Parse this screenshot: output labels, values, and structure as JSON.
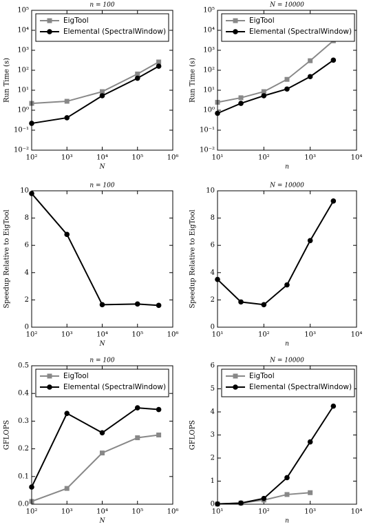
{
  "chart_data": [
    {
      "type": "line",
      "title": "n = 100",
      "xlabel": "N",
      "ylabel": "Run Time (s)",
      "xscale": "log",
      "yscale": "log",
      "legend": "upper left",
      "x": [
        100,
        1000,
        10000,
        100000,
        400000
      ],
      "series": [
        {
          "name": "EigTool",
          "color": "#888888",
          "marker": "square",
          "values": [
            2.2,
            2.8,
            8.5,
            65,
            260
          ]
        },
        {
          "name": "Elemental (SpectralWindow)",
          "color": "#000000",
          "marker": "circle",
          "values": [
            0.22,
            0.42,
            5.3,
            40,
            160
          ]
        }
      ],
      "xlim": [
        100,
        1000000
      ],
      "ylim": [
        0.01,
        100000
      ],
      "xticks": [
        {
          "value": 100,
          "label": "10²"
        },
        {
          "value": 1000,
          "label": "10³"
        },
        {
          "value": 10000,
          "label": "10⁴"
        },
        {
          "value": 100000,
          "label": "10⁵"
        },
        {
          "value": 1000000,
          "label": "10⁶"
        }
      ],
      "yticks": [
        {
          "value": 0.01,
          "label": "10⁻²"
        },
        {
          "value": 0.1,
          "label": "10⁻¹"
        },
        {
          "value": 1,
          "label": "10⁰"
        },
        {
          "value": 10,
          "label": "10¹"
        },
        {
          "value": 100,
          "label": "10²"
        },
        {
          "value": 1000,
          "label": "10³"
        },
        {
          "value": 10000,
          "label": "10⁴"
        },
        {
          "value": 100000,
          "label": "10⁵"
        }
      ]
    },
    {
      "type": "line",
      "title": "N = 10000",
      "xlabel": "n",
      "ylabel": "Run Time (s)",
      "xscale": "log",
      "yscale": "log",
      "legend": "upper left",
      "x": [
        10,
        32,
        100,
        316,
        1000,
        3162
      ],
      "series": [
        {
          "name": "EigTool",
          "color": "#888888",
          "marker": "square",
          "values": [
            2.5,
            4.2,
            8.5,
            35,
            300,
            3000
          ]
        },
        {
          "name": "Elemental (SpectralWindow)",
          "color": "#000000",
          "marker": "circle",
          "values": [
            0.7,
            2.2,
            5.3,
            11.5,
            48,
            320
          ]
        }
      ],
      "xlim": [
        10,
        10000
      ],
      "ylim": [
        0.01,
        100000
      ],
      "xticks": [
        {
          "value": 10,
          "label": "10¹"
        },
        {
          "value": 100,
          "label": "10²"
        },
        {
          "value": 1000,
          "label": "10³"
        },
        {
          "value": 10000,
          "label": "10⁴"
        }
      ],
      "yticks": [
        {
          "value": 0.01,
          "label": "10⁻²"
        },
        {
          "value": 0.1,
          "label": "10⁻¹"
        },
        {
          "value": 1,
          "label": "10⁰"
        },
        {
          "value": 10,
          "label": "10¹"
        },
        {
          "value": 100,
          "label": "10²"
        },
        {
          "value": 1000,
          "label": "10³"
        },
        {
          "value": 10000,
          "label": "10⁴"
        },
        {
          "value": 100000,
          "label": "10⁵"
        }
      ]
    },
    {
      "type": "line",
      "title": "n = 100",
      "xlabel": "N",
      "ylabel": "Speedup Relative to EigTool",
      "xscale": "log",
      "yscale": "linear",
      "x": [
        100,
        1000,
        10000,
        100000,
        400000
      ],
      "series": [
        {
          "color": "#000000",
          "marker": "circle",
          "values": [
            9.8,
            6.8,
            1.65,
            1.7,
            1.6
          ]
        }
      ],
      "xlim": [
        100,
        1000000
      ],
      "ylim": [
        0,
        10
      ],
      "xticks": [
        {
          "value": 100,
          "label": "10²"
        },
        {
          "value": 1000,
          "label": "10³"
        },
        {
          "value": 10000,
          "label": "10⁴"
        },
        {
          "value": 100000,
          "label": "10⁵"
        },
        {
          "value": 1000000,
          "label": "10⁶"
        }
      ],
      "yticks": [
        0,
        2,
        4,
        6,
        8,
        10
      ]
    },
    {
      "type": "line",
      "title": "N = 10000",
      "xlabel": "n",
      "ylabel": "Speedup Relative to EigTool",
      "xscale": "log",
      "yscale": "linear",
      "x": [
        10,
        32,
        100,
        316,
        1000,
        3162
      ],
      "series": [
        {
          "color": "#000000",
          "marker": "circle",
          "values": [
            3.5,
            1.85,
            1.65,
            3.1,
            6.35,
            9.25
          ]
        }
      ],
      "xlim": [
        10,
        10000
      ],
      "ylim": [
        0,
        10
      ],
      "xticks": [
        {
          "value": 10,
          "label": "10¹"
        },
        {
          "value": 100,
          "label": "10²"
        },
        {
          "value": 1000,
          "label": "10³"
        },
        {
          "value": 10000,
          "label": "10⁴"
        }
      ],
      "yticks": [
        0,
        2,
        4,
        6,
        8,
        10
      ]
    },
    {
      "type": "line",
      "title": "n = 100",
      "xlabel": "N",
      "ylabel": "GFLOPS",
      "xscale": "log",
      "yscale": "linear",
      "legend": "upper left",
      "x": [
        100,
        1000,
        10000,
        100000,
        400000
      ],
      "series": [
        {
          "name": "EigTool",
          "color": "#888888",
          "marker": "square",
          "values": [
            0.01,
            0.057,
            0.185,
            0.24,
            0.25
          ]
        },
        {
          "name": "Elemental (SpectralWindow)",
          "color": "#000000",
          "marker": "circle",
          "values": [
            0.062,
            0.328,
            0.258,
            0.348,
            0.342
          ]
        }
      ],
      "xlim": [
        100,
        1000000
      ],
      "ylim": [
        0,
        0.5
      ],
      "xticks": [
        {
          "value": 100,
          "label": "10²"
        },
        {
          "value": 1000,
          "label": "10³"
        },
        {
          "value": 10000,
          "label": "10⁴"
        },
        {
          "value": 100000,
          "label": "10⁵"
        },
        {
          "value": 1000000,
          "label": "10⁶"
        }
      ],
      "yticks": [
        {
          "value": 0,
          "label": "0.0"
        },
        0.1,
        0.2,
        0.3,
        0.4,
        0.5
      ]
    },
    {
      "type": "line",
      "title": "N = 10000",
      "xlabel": "n",
      "ylabel": "GFLOPS",
      "xscale": "log",
      "yscale": "linear",
      "legend": "upper left",
      "x": [
        10,
        32,
        100,
        316,
        1000,
        3162
      ],
      "series": [
        {
          "name": "EigTool",
          "color": "#888888",
          "marker": "square",
          "values": [
            0.01,
            0.05,
            0.18,
            0.42,
            0.5,
            null
          ]
        },
        {
          "name": "Elemental (SpectralWindow)",
          "color": "#000000",
          "marker": "circle",
          "values": [
            0.01,
            0.05,
            0.25,
            1.15,
            2.7,
            4.25
          ]
        }
      ],
      "xlim": [
        10,
        10000
      ],
      "ylim": [
        0,
        6
      ],
      "xticks": [
        {
          "value": 10,
          "label": "10¹"
        },
        {
          "value": 100,
          "label": "10²"
        },
        {
          "value": 1000,
          "label": "10³"
        },
        {
          "value": 10000,
          "label": "10⁴"
        }
      ],
      "yticks": [
        0,
        1,
        2,
        3,
        4,
        5,
        6
      ]
    }
  ]
}
